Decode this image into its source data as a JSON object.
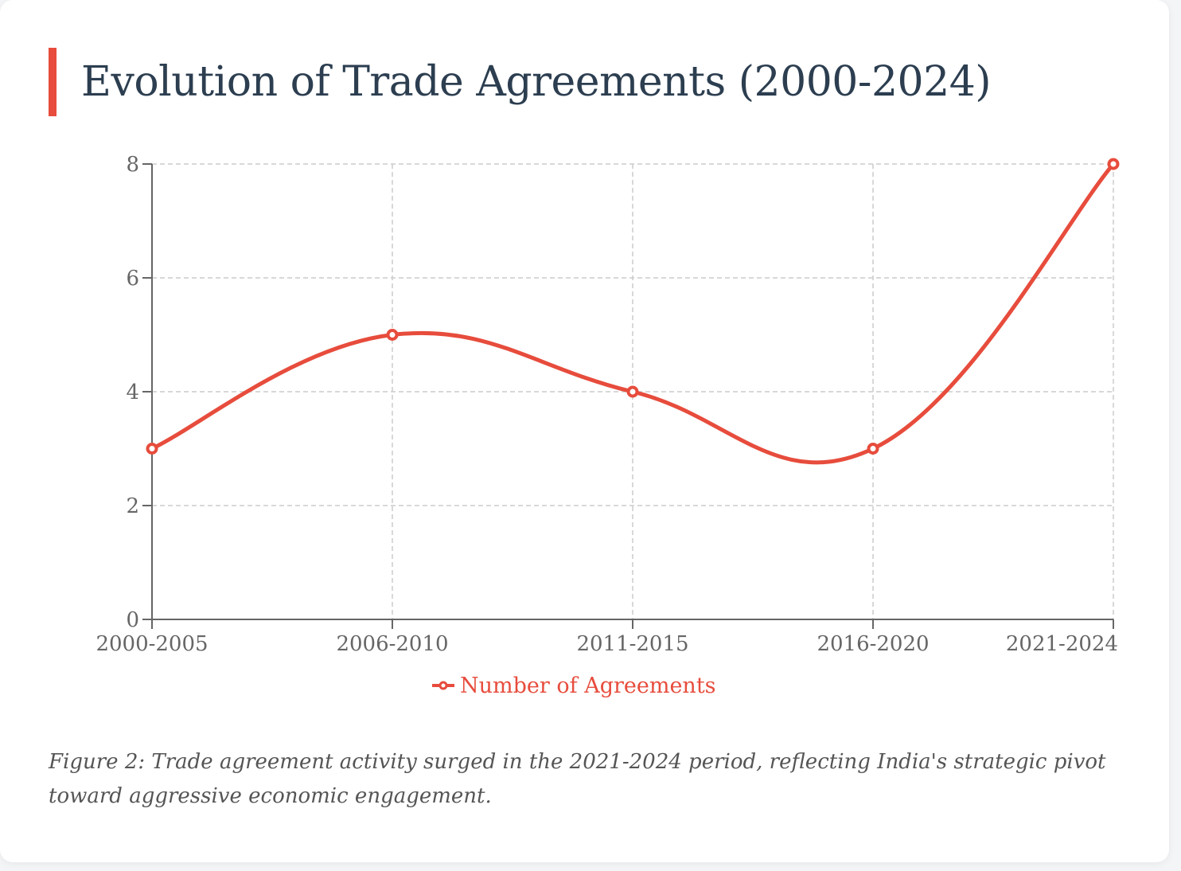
{
  "header": {
    "title": "Evolution of Trade Agreements (2000-2024)"
  },
  "colors": {
    "accent": "#e74c3c",
    "title": "#2c3e50",
    "axis": "#666666",
    "grid": "#cccccc",
    "caption": "#555555"
  },
  "chart_data": {
    "type": "line",
    "title": "",
    "xlabel": "",
    "ylabel": "",
    "categories": [
      "2000-2005",
      "2006-2010",
      "2011-2015",
      "2016-2020",
      "2021-2024"
    ],
    "series": [
      {
        "name": "Number of Agreements",
        "values": [
          3,
          5,
          4,
          3,
          8
        ],
        "color": "#e74c3c",
        "smooth": true,
        "marker": "hollow-circle"
      }
    ],
    "ylim": [
      0,
      8
    ],
    "yticks": [
      0,
      2,
      4,
      6,
      8
    ],
    "grid": true,
    "grid_style": "dashed",
    "legend": "bottom-center"
  },
  "caption": {
    "text": "Figure 2: Trade agreement activity surged in the 2021-2024 period, reflecting India's strategic pivot toward aggressive economic engagement."
  }
}
